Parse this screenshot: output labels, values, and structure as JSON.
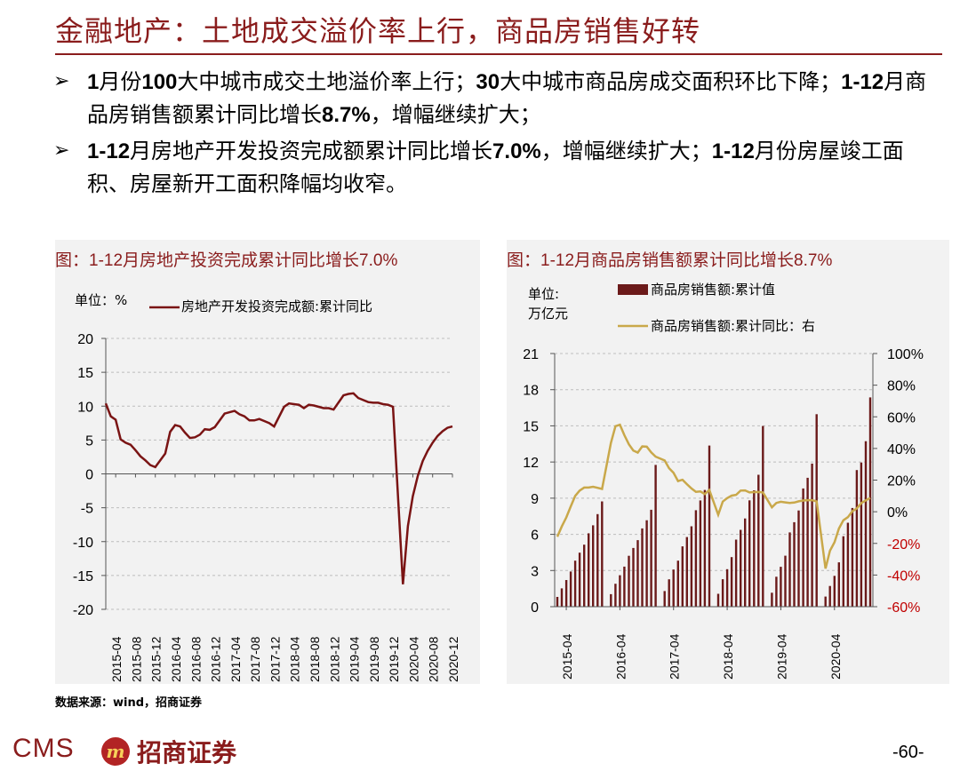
{
  "page": {
    "title": "金融地产：土地成交溢价率上行，商品房销售好转",
    "bullets": [
      {
        "arrow": "➢",
        "segments": [
          {
            "t": "1",
            "b": true
          },
          {
            "t": "月份",
            "b": false
          },
          {
            "t": "100",
            "b": true
          },
          {
            "t": "大中城市成交土地溢价率上行；",
            "b": false
          },
          {
            "t": "30",
            "b": true
          },
          {
            "t": "大中城市商品房成交面积环比下降；",
            "b": false
          },
          {
            "t": "1-12",
            "b": true
          },
          {
            "t": "月商品房销售额累计同比增长",
            "b": false
          },
          {
            "t": "8.7%",
            "b": true
          },
          {
            "t": "，增幅继续扩大；",
            "b": false
          }
        ]
      },
      {
        "arrow": "➢",
        "segments": [
          {
            "t": "1-12",
            "b": true
          },
          {
            "t": "月房地产开发投资完成额累计同比增长",
            "b": false
          },
          {
            "t": "7.0%",
            "b": true
          },
          {
            "t": "，增幅继续扩大；",
            "b": false
          },
          {
            "t": "1-12",
            "b": true
          },
          {
            "t": "月份房屋竣工面积、房屋新开工面积降幅均收窄。",
            "b": false
          }
        ]
      }
    ],
    "source": "数据来源：wind，招商证券",
    "logo": {
      "cms": "CMS",
      "mark_glyph": "m",
      "cn": "招商证券"
    },
    "page_number": "-60-"
  },
  "colors": {
    "accent": "#8a1c1c",
    "bar": "#6b1a1a",
    "line_right": "#c9a84a",
    "right_axis": "#c00000"
  },
  "chart_data": [
    {
      "type": "line",
      "panel_title": "图：1-12月房地产投资完成累计同比增长7.0%",
      "unit_label": "单位：%",
      "legend": "房地产开发投资完成额:累计同比",
      "ylim": [
        -20,
        20
      ],
      "yticks": [
        20,
        15,
        10,
        5,
        0,
        -5,
        -10,
        -15,
        -20
      ],
      "xtick_labels": [
        "2015-04",
        "2015-08",
        "2015-12",
        "2016-04",
        "2016-08",
        "2016-12",
        "2017-04",
        "2017-08",
        "2017-12",
        "2018-04",
        "2018-08",
        "2018-12",
        "2019-04",
        "2019-08",
        "2019-12",
        "2020-04",
        "2020-08",
        "2020-12"
      ],
      "series": [
        {
          "name": "房地产开发投资完成额:累计同比",
          "x": [
            "2015-02",
            "2015-03",
            "2015-04",
            "2015-05",
            "2015-06",
            "2015-07",
            "2015-08",
            "2015-09",
            "2015-10",
            "2015-11",
            "2015-12",
            "2016-02",
            "2016-03",
            "2016-04",
            "2016-05",
            "2016-06",
            "2016-07",
            "2016-08",
            "2016-09",
            "2016-10",
            "2016-11",
            "2016-12",
            "2017-02",
            "2017-03",
            "2017-04",
            "2017-05",
            "2017-06",
            "2017-07",
            "2017-08",
            "2017-09",
            "2017-10",
            "2017-11",
            "2017-12",
            "2018-02",
            "2018-03",
            "2018-04",
            "2018-05",
            "2018-06",
            "2018-07",
            "2018-08",
            "2018-09",
            "2018-10",
            "2018-11",
            "2018-12",
            "2019-02",
            "2019-03",
            "2019-04",
            "2019-05",
            "2019-06",
            "2019-07",
            "2019-08",
            "2019-09",
            "2019-10",
            "2019-11",
            "2019-12",
            "2020-02",
            "2020-03",
            "2020-04",
            "2020-05",
            "2020-06",
            "2020-07",
            "2020-08",
            "2020-09",
            "2020-10",
            "2020-11",
            "2020-12"
          ],
          "values": [
            10.4,
            8.5,
            8.0,
            5.1,
            4.6,
            4.3,
            3.5,
            2.6,
            2.0,
            1.3,
            1.0,
            3.0,
            6.2,
            7.2,
            7.0,
            6.1,
            5.3,
            5.4,
            5.8,
            6.6,
            6.5,
            6.9,
            8.9,
            9.1,
            9.3,
            8.8,
            8.5,
            7.9,
            7.9,
            8.1,
            7.8,
            7.5,
            7.0,
            9.9,
            10.4,
            10.3,
            10.2,
            9.7,
            10.2,
            10.1,
            9.9,
            9.7,
            9.7,
            9.5,
            11.6,
            11.8,
            11.9,
            11.2,
            10.9,
            10.6,
            10.5,
            10.5,
            10.3,
            10.2,
            9.9,
            -16.3,
            -7.7,
            -3.3,
            -0.3,
            1.9,
            3.4,
            4.6,
            5.6,
            6.3,
            6.8,
            7.0
          ]
        }
      ]
    },
    {
      "type": "bar",
      "panel_title": "图：1-12月商品房销售额累计同比增长8.7%",
      "unit_label": [
        "单位:",
        "万亿元"
      ],
      "legend": [
        "商品房销售额:累计值",
        "商品房销售额:累计同比：右"
      ],
      "ylim": [
        0,
        21
      ],
      "yticks": [
        21,
        18,
        15,
        12,
        9,
        6,
        3,
        0
      ],
      "ylim_right": [
        -60,
        100
      ],
      "yticks_right": [
        "100%",
        "80%",
        "60%",
        "40%",
        "20%",
        "0%",
        "-20%",
        "-40%",
        "-60%"
      ],
      "xtick_labels": [
        "2015-04",
        "2016-04",
        "2017-04",
        "2018-04",
        "2019-04",
        "2020-04"
      ],
      "series": [
        {
          "name": "商品房销售额:累计值",
          "x": [
            "2015-02",
            "2015-03",
            "2015-04",
            "2015-05",
            "2015-06",
            "2015-07",
            "2015-08",
            "2015-09",
            "2015-10",
            "2015-11",
            "2015-12",
            "2016-02",
            "2016-03",
            "2016-04",
            "2016-05",
            "2016-06",
            "2016-07",
            "2016-08",
            "2016-09",
            "2016-10",
            "2016-11",
            "2016-12",
            "2017-02",
            "2017-03",
            "2017-04",
            "2017-05",
            "2017-06",
            "2017-07",
            "2017-08",
            "2017-09",
            "2017-10",
            "2017-11",
            "2017-12",
            "2018-02",
            "2018-03",
            "2018-04",
            "2018-05",
            "2018-06",
            "2018-07",
            "2018-08",
            "2018-09",
            "2018-10",
            "2018-11",
            "2018-12",
            "2019-02",
            "2019-03",
            "2019-04",
            "2019-05",
            "2019-06",
            "2019-07",
            "2019-08",
            "2019-09",
            "2019-10",
            "2019-11",
            "2019-12",
            "2020-02",
            "2020-03",
            "2020-04",
            "2020-05",
            "2020-06",
            "2020-07",
            "2020-08",
            "2020-09",
            "2020-10",
            "2020-11",
            "2020-12"
          ],
          "values": [
            0.81,
            1.52,
            2.21,
            2.92,
            3.82,
            4.48,
            5.14,
            6.09,
            6.75,
            7.68,
            8.73,
            1.04,
            1.9,
            2.61,
            3.32,
            4.22,
            4.87,
            5.52,
            6.49,
            7.17,
            8.04,
            11.76,
            1.3,
            2.27,
            3.08,
            3.82,
            5.0,
            5.78,
            6.67,
            8.0,
            8.81,
            9.68,
            13.37,
            1.07,
            2.28,
            3.11,
            4.11,
            5.56,
            6.37,
            7.32,
            8.82,
            9.65,
            10.94,
            14.99,
            1.16,
            2.48,
            3.31,
            4.23,
            6.16,
            7.01,
            7.98,
            9.81,
            10.69,
            11.87,
            15.97,
            0.84,
            1.72,
            2.56,
            3.68,
            5.84,
            6.96,
            8.19,
            11.33,
            11.96,
            13.73,
            17.36
          ]
        },
        {
          "name": "商品房销售额:累计同比",
          "axis": "right",
          "values": [
            -15.8,
            -9.3,
            -3.6,
            3.4,
            10.0,
            13.4,
            15.3,
            15.3,
            15.8,
            15.1,
            14.4,
            43.6,
            54.1,
            55.0,
            48.4,
            42.6,
            38.7,
            37.4,
            41.3,
            41.1,
            37.5,
            34.8,
            32.4,
            27.5,
            24.6,
            19.4,
            20.2,
            17.4,
            14.7,
            12.6,
            12.8,
            11.2,
            13.7,
            -1.9,
            6.4,
            8.6,
            10.2,
            10.7,
            13.4,
            13.5,
            12.2,
            12.4,
            12.5,
            12.2,
            2.8,
            5.6,
            6.3,
            5.9,
            5.6,
            5.8,
            6.6,
            7.1,
            7.3,
            7.3,
            6.5,
            -35.9,
            -24.7,
            -19.3,
            -10.6,
            -5.4,
            -3.4,
            0.3,
            2.1,
            5.4,
            7.2,
            8.7
          ]
        }
      ]
    }
  ]
}
